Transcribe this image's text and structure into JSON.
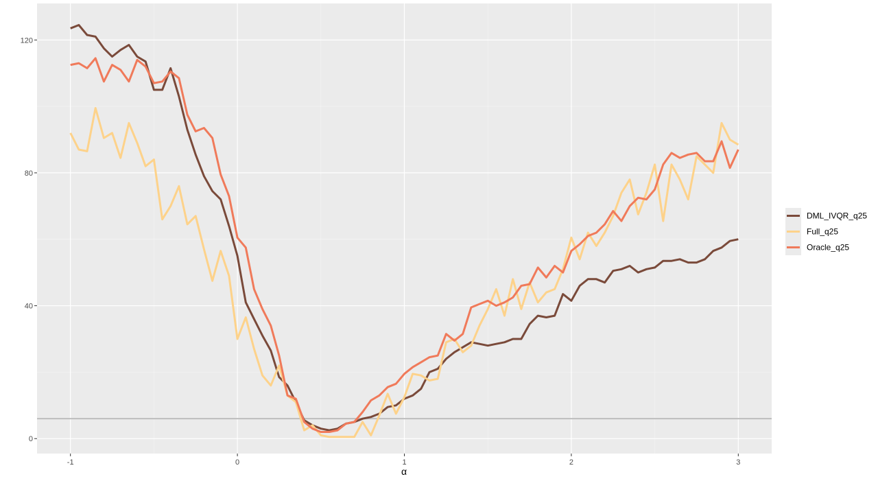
{
  "chart_data": {
    "type": "line",
    "title": "",
    "xlabel": "α",
    "ylabel": "",
    "xlim": [
      -1.2,
      3.2
    ],
    "ylim": [
      -4.5,
      131
    ],
    "x_ticks": [
      -1,
      0,
      1,
      2,
      3
    ],
    "x_tick_labels": [
      "-1",
      "0",
      "1",
      "2",
      "3"
    ],
    "y_ticks": [
      0,
      40,
      80,
      120
    ],
    "y_tick_labels": [
      "0",
      "40",
      "80",
      "120"
    ],
    "grid": true,
    "reference_line_y": 6,
    "legend_position": "right",
    "x": [
      -1.0,
      -0.95,
      -0.9,
      -0.85,
      -0.8,
      -0.75,
      -0.7,
      -0.65,
      -0.6,
      -0.55,
      -0.5,
      -0.45,
      -0.4,
      -0.35,
      -0.3,
      -0.25,
      -0.2,
      -0.15,
      -0.1,
      -0.05,
      0.0,
      0.05,
      0.1,
      0.15,
      0.2,
      0.25,
      0.3,
      0.35,
      0.4,
      0.45,
      0.5,
      0.55,
      0.6,
      0.65,
      0.7,
      0.75,
      0.8,
      0.85,
      0.9,
      0.95,
      1.0,
      1.05,
      1.1,
      1.15,
      1.2,
      1.25,
      1.3,
      1.35,
      1.4,
      1.45,
      1.5,
      1.55,
      1.6,
      1.65,
      1.7,
      1.75,
      1.8,
      1.85,
      1.9,
      1.95,
      2.0,
      2.05,
      2.1,
      2.15,
      2.2,
      2.25,
      2.3,
      2.35,
      2.4,
      2.45,
      2.5,
      2.55,
      2.6,
      2.65,
      2.7,
      2.75,
      2.8,
      2.85,
      2.9,
      2.95,
      3.0
    ],
    "series": [
      {
        "name": "DML_IVQR_q25",
        "color": "#7a4a3a",
        "values": [
          123.5,
          124.5,
          121.5,
          121,
          117.5,
          115,
          117,
          118.5,
          115,
          113.5,
          105,
          105,
          111.5,
          103,
          93,
          85.5,
          79,
          74.5,
          72,
          64,
          55,
          41,
          36,
          31,
          26.5,
          18.5,
          16,
          11,
          5.5,
          4,
          3,
          2.5,
          3,
          4.5,
          5,
          6,
          6.5,
          7.5,
          9.5,
          10,
          12,
          13,
          15,
          20,
          21,
          24,
          26,
          27.5,
          29,
          28.5,
          28,
          28.5,
          29,
          30,
          30,
          34.5,
          37,
          36.5,
          37,
          43.5,
          41.5,
          46,
          48,
          48,
          47,
          50.5,
          51,
          52,
          50,
          51,
          51.5,
          53.5,
          53.5,
          54,
          53,
          53,
          54,
          56.5,
          57.5,
          59.5,
          60
        ]
      },
      {
        "name": "Full_q25",
        "color": "#fdd28a",
        "values": [
          92,
          87,
          86.5,
          99.5,
          90.5,
          92,
          84.5,
          95,
          89,
          82,
          84,
          66,
          70,
          76,
          64.5,
          67,
          57,
          47.5,
          56.5,
          49,
          30,
          36.5,
          27,
          19,
          16,
          22,
          13,
          11,
          2.5,
          4,
          1,
          0.5,
          0.5,
          0.5,
          0.5,
          5,
          1,
          7,
          13.5,
          7.5,
          12.5,
          19.5,
          19,
          17.5,
          18,
          29,
          30,
          26,
          28,
          34,
          39,
          45,
          37,
          48,
          39,
          47,
          41,
          44,
          45,
          51,
          60.5,
          54,
          62,
          58,
          62,
          67,
          74,
          78,
          67.5,
          74,
          82.5,
          65.5,
          82.5,
          78,
          72,
          85,
          82.5,
          80,
          95,
          90,
          88.5
        ]
      },
      {
        "name": "Oracle_q25",
        "color": "#f07a5a",
        "values": [
          112.5,
          113,
          111.5,
          114.5,
          107.5,
          112.5,
          111,
          107.5,
          114,
          112,
          107,
          107.5,
          110.5,
          108.5,
          97.5,
          92.5,
          93.5,
          90.5,
          79.5,
          73,
          60.5,
          57.5,
          45,
          39,
          34,
          25,
          13,
          12,
          5,
          3,
          2,
          2,
          2.5,
          4.5,
          5,
          8,
          11.5,
          13,
          15.5,
          16.5,
          19.5,
          21.5,
          23,
          24.5,
          25,
          31.5,
          29.5,
          31.5,
          39.5,
          40.5,
          41.5,
          40,
          41,
          42.5,
          46,
          46.5,
          51.5,
          48.5,
          52,
          50,
          56.5,
          58.5,
          61,
          62,
          64.5,
          68.5,
          65.5,
          70,
          72.5,
          72,
          75,
          82.5,
          86,
          84.5,
          85.5,
          86,
          83.5,
          83.5,
          89.5,
          81.5,
          87
        ]
      }
    ]
  }
}
